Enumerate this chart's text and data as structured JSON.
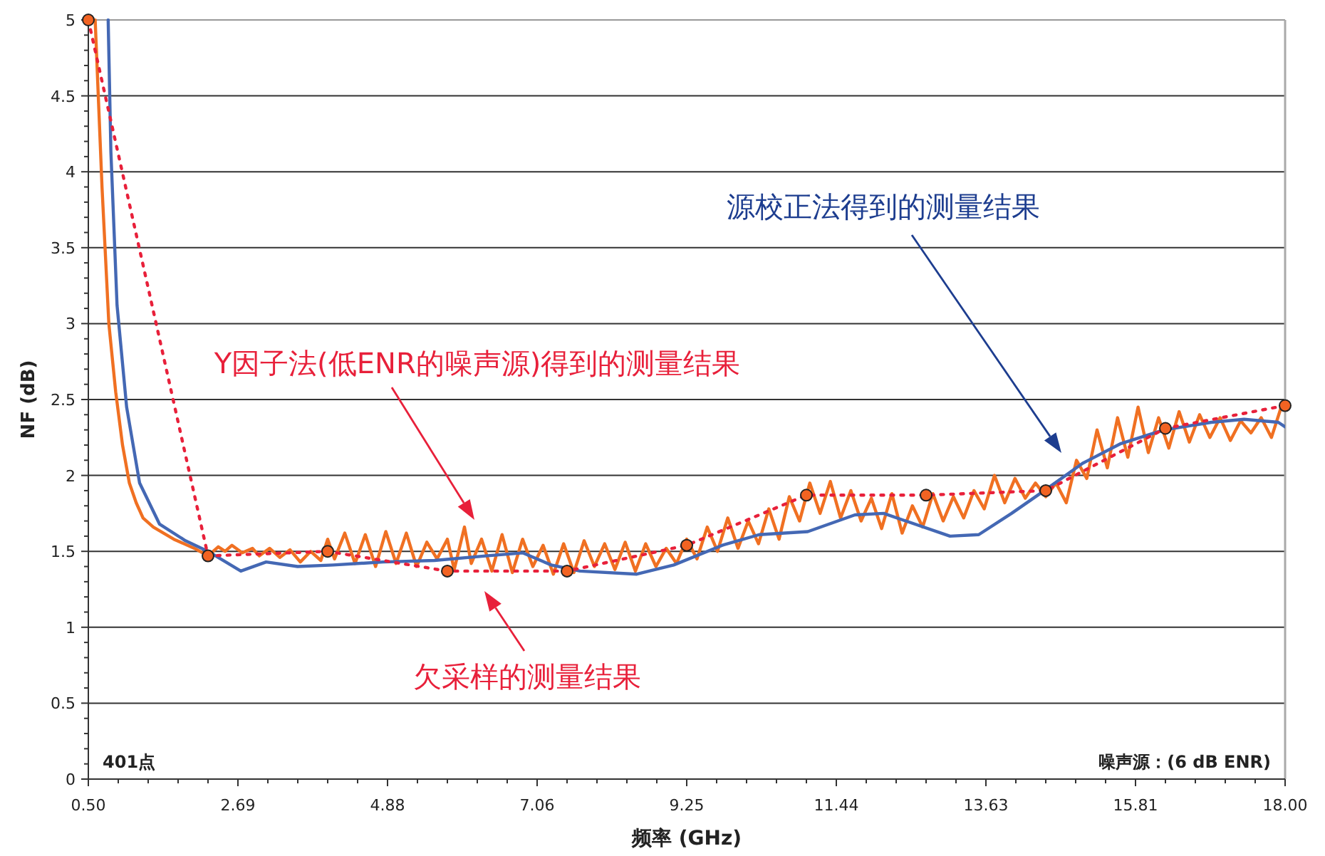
{
  "chart_data": {
    "type": "line",
    "xlabel": "频率 (GHz)",
    "ylabel": "NF (dB)",
    "xlim": [
      0.5,
      18.0
    ],
    "ylim": [
      0,
      5
    ],
    "xticks": [
      {
        "value": 0.5,
        "label": "0.50"
      },
      {
        "value": 2.6875,
        "label": "2.69"
      },
      {
        "value": 4.875,
        "label": "4.88"
      },
      {
        "value": 7.0625,
        "label": "7.06"
      },
      9.25,
      {
        "value": 11.4375,
        "label": "11.44"
      },
      {
        "value": 13.625,
        "label": "13.63"
      },
      {
        "value": 15.8125,
        "label": "15.81"
      },
      {
        "value": 18.0,
        "label": "18.00"
      }
    ],
    "yticks": [
      0,
      0.5,
      1,
      1.5,
      2,
      2.5,
      3,
      3.5,
      4,
      4.5,
      5
    ],
    "grid": "y",
    "series": [
      {
        "color": "#f07022",
        "x": [
          0.6,
          0.7,
          0.8,
          0.9,
          1.0,
          1.1,
          1.2,
          1.3,
          1.45,
          1.6,
          1.75,
          1.9,
          2.05,
          2.25,
          2.4,
          2.5,
          2.6,
          2.75,
          2.9,
          3.0,
          3.15,
          3.3,
          3.45,
          3.6,
          3.75,
          3.9,
          4.0,
          4.1,
          4.25,
          4.4,
          4.55,
          4.7,
          4.85,
          5.0,
          5.15,
          5.3,
          5.45,
          5.6,
          5.75,
          5.85,
          6.0,
          6.1,
          6.25,
          6.4,
          6.55,
          6.7,
          6.85,
          7.0,
          7.15,
          7.3,
          7.45,
          7.6,
          7.75,
          7.9,
          8.05,
          8.2,
          8.35,
          8.5,
          8.65,
          8.8,
          8.95,
          9.1,
          9.25,
          9.4,
          9.55,
          9.7,
          9.85,
          10.0,
          10.15,
          10.3,
          10.45,
          10.6,
          10.75,
          10.9,
          11.05,
          11.2,
          11.35,
          11.5,
          11.65,
          11.8,
          11.95,
          12.1,
          12.25,
          12.4,
          12.55,
          12.7,
          12.85,
          13.0,
          13.15,
          13.3,
          13.45,
          13.6,
          13.75,
          13.9,
          14.05,
          14.2,
          14.35,
          14.5,
          14.65,
          14.8,
          14.95,
          15.1,
          15.25,
          15.4,
          15.55,
          15.7,
          15.85,
          16.0,
          16.15,
          16.3,
          16.45,
          16.6,
          16.75,
          16.9,
          17.05,
          17.2,
          17.35,
          17.5,
          17.65,
          17.8,
          17.95
        ],
        "values": [
          5.0,
          3.9,
          3.0,
          2.55,
          2.2,
          1.95,
          1.82,
          1.72,
          1.66,
          1.62,
          1.58,
          1.55,
          1.52,
          1.47,
          1.53,
          1.5,
          1.54,
          1.49,
          1.52,
          1.47,
          1.52,
          1.46,
          1.51,
          1.43,
          1.5,
          1.44,
          1.58,
          1.45,
          1.62,
          1.42,
          1.61,
          1.4,
          1.63,
          1.42,
          1.62,
          1.4,
          1.56,
          1.45,
          1.58,
          1.38,
          1.66,
          1.42,
          1.58,
          1.37,
          1.61,
          1.36,
          1.58,
          1.4,
          1.54,
          1.35,
          1.55,
          1.36,
          1.57,
          1.4,
          1.55,
          1.38,
          1.56,
          1.37,
          1.55,
          1.4,
          1.52,
          1.42,
          1.58,
          1.45,
          1.66,
          1.5,
          1.72,
          1.52,
          1.7,
          1.55,
          1.78,
          1.58,
          1.86,
          1.7,
          1.95,
          1.75,
          1.96,
          1.72,
          1.9,
          1.7,
          1.85,
          1.65,
          1.88,
          1.62,
          1.8,
          1.66,
          1.88,
          1.7,
          1.86,
          1.72,
          1.9,
          1.78,
          2.0,
          1.82,
          1.98,
          1.85,
          1.95,
          1.86,
          1.95,
          1.82,
          2.1,
          1.98,
          2.3,
          2.05,
          2.38,
          2.12,
          2.45,
          2.15,
          2.38,
          2.18,
          2.42,
          2.22,
          2.4,
          2.25,
          2.38,
          2.23,
          2.36,
          2.28,
          2.38,
          2.25,
          2.46
        ]
      },
      {
        "color": "#4468b4",
        "x": [
          0.79,
          0.83,
          0.92,
          1.06,
          1.25,
          1.54,
          1.92,
          2.25,
          2.73,
          3.1,
          3.56,
          4.08,
          4.81,
          5.56,
          6.31,
          6.85,
          7.27,
          7.69,
          8.52,
          9.06,
          9.77,
          10.31,
          11.02,
          11.71,
          12.13,
          13.1,
          13.52,
          14.0,
          14.48,
          15.04,
          15.6,
          16.23,
          16.92,
          17.4,
          17.9,
          18.0
        ],
        "values": [
          5.0,
          4.13,
          3.12,
          2.45,
          1.95,
          1.68,
          1.57,
          1.5,
          1.37,
          1.43,
          1.4,
          1.41,
          1.43,
          1.44,
          1.47,
          1.49,
          1.41,
          1.37,
          1.35,
          1.41,
          1.54,
          1.61,
          1.63,
          1.74,
          1.75,
          1.6,
          1.61,
          1.75,
          1.9,
          2.08,
          2.21,
          2.3,
          2.35,
          2.37,
          2.35,
          2.32
        ]
      },
      {
        "color": "#e8203a",
        "marker": "circle",
        "line_style": "dotted",
        "x": [
          0.5,
          2.25,
          4.0,
          5.75,
          7.5,
          9.25,
          11.0,
          12.75,
          14.5,
          16.25,
          18.0
        ],
        "values": [
          5.0,
          1.47,
          1.5,
          1.37,
          1.37,
          1.54,
          1.87,
          1.87,
          1.9,
          2.31,
          2.46
        ]
      }
    ],
    "annotations": [
      "Y因子法(低ENR的噪声源)得到的测量结果",
      "欠采样的测量结果",
      "源校正法得到的测量结果",
      "401点",
      "噪声源：(6 dB ENR)"
    ]
  }
}
